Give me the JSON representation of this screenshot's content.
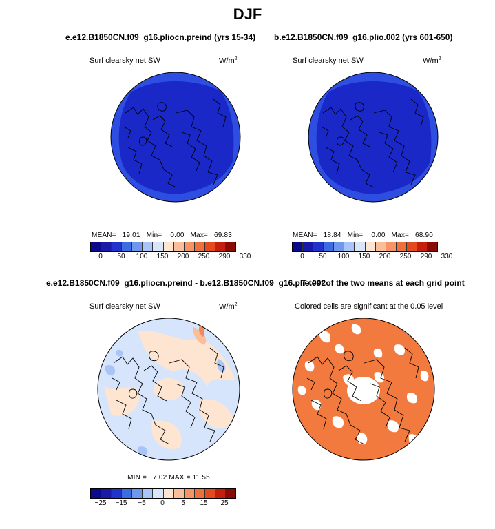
{
  "main_title": "DJF",
  "panels": {
    "top_left": {
      "title": "e.e12.B1850CN.f09_g16.pliocn.preind (yrs 15-34)",
      "variable": "Surf clearsky net SW",
      "units": "W/m",
      "units_exp": "2",
      "mean_label": "MEAN=",
      "mean": "19.01",
      "min_label": "Min=",
      "min": "0.00",
      "max_label": "Max=",
      "max": "69.83"
    },
    "top_right": {
      "title": "b.e12.B1850CN.f09_g16.plio.002 (yrs 601-650)",
      "variable": "Surf clearsky net SW",
      "units": "W/m",
      "units_exp": "2",
      "mean_label": "MEAN=",
      "mean": "18.84",
      "min_label": "Min=",
      "min": "0.00",
      "max_label": "Max=",
      "max": "68.90"
    },
    "bottom_left": {
      "title": "e.e12.B1850CN.f09_g16.pliocn.preind - b.e12.B1850CN.f09_g16.plio.002",
      "variable": "Surf clearsky net SW",
      "units": "W/m",
      "units_exp": "2",
      "stats_text": "MIN =  −7.02  MAX =  11.55"
    },
    "bottom_right": {
      "title": "T-test of the two means at each grid point",
      "subtitle": "Colored cells are significant at the 0.05 level"
    }
  },
  "colorbars": {
    "absolute": {
      "colors": [
        "#0a0a8a",
        "#1a1aa8",
        "#2233cc",
        "#3d6be0",
        "#6f97ee",
        "#a9c4f6",
        "#d8e6fb",
        "#fde5d2",
        "#fbbe9a",
        "#f69467",
        "#f0703c",
        "#e54a1e",
        "#c41e0c",
        "#8a0a04"
      ],
      "tick_labels": [
        "0",
        "50",
        "100",
        "150",
        "200",
        "250",
        "290",
        "330"
      ]
    },
    "difference": {
      "colors": [
        "#0a0a8a",
        "#1a1aa8",
        "#2233cc",
        "#3d6be0",
        "#6f97ee",
        "#a9c4f6",
        "#d8e6fb",
        "#fde5d2",
        "#fbbe9a",
        "#f69467",
        "#f0703c",
        "#e54a1e",
        "#c41e0c",
        "#8a0a04"
      ],
      "tick_labels": [
        "−25",
        "−15",
        "−5",
        "0",
        "5",
        "15",
        "25"
      ]
    }
  },
  "map_colors": {
    "abs_inner": "#1a28c8",
    "abs_outer": "#2d4ee0",
    "diff_base": "#d6e5fb",
    "diff_warm": "#fde5d2",
    "diff_warm2": "#fbbe9a",
    "diff_warm3": "#f08a5a",
    "diff_cool": "#a9c4f6",
    "ttest_fill": "#f27a3e"
  }
}
